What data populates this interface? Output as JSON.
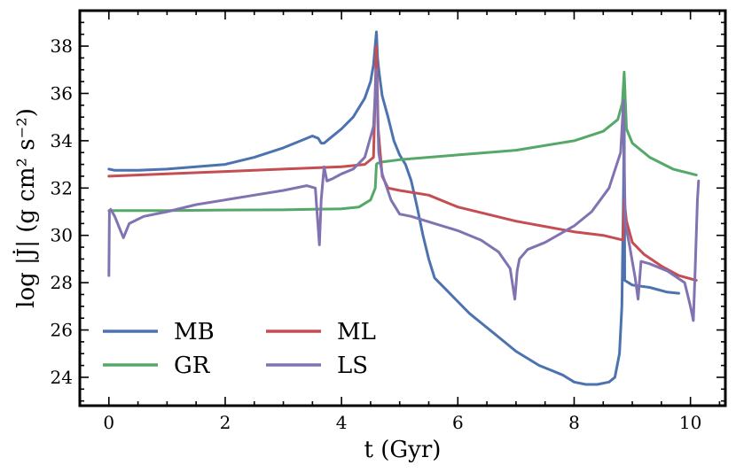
{
  "chart_data": {
    "type": "line",
    "xlabel": "t (Gyr)",
    "ylabel": "log |J̇| (g cm² s⁻²)",
    "xlim": [
      -0.5,
      10.6
    ],
    "ylim": [
      22.8,
      39.5
    ],
    "xticks": [
      0,
      2,
      4,
      6,
      8,
      10
    ],
    "yticks": [
      24,
      26,
      28,
      30,
      32,
      34,
      36,
      38
    ],
    "legend_placement": "lower-left",
    "grid": false,
    "series": [
      {
        "name": "MB",
        "color": "#4c72b0",
        "x": [
          0,
          0.1,
          0.5,
          1.0,
          1.5,
          2.0,
          2.5,
          3.0,
          3.3,
          3.5,
          3.6,
          3.65,
          3.7,
          3.8,
          4.0,
          4.2,
          4.4,
          4.5,
          4.55,
          4.6,
          4.62,
          4.65,
          4.7,
          4.8,
          4.9,
          5.0,
          5.1,
          5.2,
          5.3,
          5.4,
          5.5,
          5.6,
          5.8,
          6.0,
          6.2,
          6.4,
          6.6,
          6.8,
          7.0,
          7.2,
          7.4,
          7.6,
          7.8,
          8.0,
          8.2,
          8.4,
          8.6,
          8.7,
          8.78,
          8.82,
          8.85,
          8.86,
          8.87,
          9.0,
          9.3,
          9.6,
          9.8
        ],
        "y": [
          32.8,
          32.75,
          32.75,
          32.8,
          32.9,
          33.0,
          33.3,
          33.7,
          34.0,
          34.2,
          34.1,
          33.9,
          33.9,
          34.1,
          34.5,
          35.0,
          35.8,
          36.5,
          37.2,
          38.6,
          37.5,
          36.8,
          35.9,
          35.0,
          34.0,
          33.4,
          33.0,
          32.3,
          31.2,
          30.0,
          29.0,
          28.2,
          27.7,
          27.2,
          26.7,
          26.3,
          25.9,
          25.5,
          25.1,
          24.8,
          24.5,
          24.3,
          24.1,
          23.8,
          23.7,
          23.7,
          23.8,
          24.0,
          25.0,
          27.0,
          32.0,
          35.5,
          28.1,
          27.9,
          27.8,
          27.6,
          27.55
        ]
      },
      {
        "name": "GR",
        "color": "#55a868",
        "x": [
          0,
          0.5,
          1.0,
          2.0,
          3.0,
          3.5,
          4.0,
          4.3,
          4.5,
          4.58,
          4.6,
          4.62,
          4.7,
          5.0,
          6.0,
          7.0,
          8.0,
          8.5,
          8.75,
          8.83,
          8.86,
          8.9,
          9.0,
          9.3,
          9.7,
          10.1
        ],
        "y": [
          31.05,
          31.05,
          31.05,
          31.07,
          31.08,
          31.1,
          31.12,
          31.2,
          31.5,
          32.0,
          33.0,
          33.05,
          33.1,
          33.2,
          33.4,
          33.6,
          34.0,
          34.4,
          34.9,
          35.6,
          36.9,
          34.5,
          33.9,
          33.3,
          32.8,
          32.55
        ]
      },
      {
        "name": "ML",
        "color": "#c44e52",
        "x": [
          0,
          1.0,
          2.0,
          3.0,
          4.0,
          4.4,
          4.55,
          4.6,
          4.63,
          4.7,
          4.8,
          5.0,
          5.5,
          6.0,
          7.0,
          8.0,
          8.5,
          8.84,
          8.86,
          8.9,
          9.0,
          9.2,
          9.5,
          9.8,
          10.1
        ],
        "y": [
          32.5,
          32.6,
          32.7,
          32.8,
          32.9,
          33.0,
          33.3,
          38.0,
          34.5,
          32.5,
          32.0,
          31.9,
          31.7,
          31.2,
          30.6,
          30.15,
          30.0,
          29.8,
          31.5,
          30.6,
          29.7,
          29.2,
          28.7,
          28.3,
          28.1
        ]
      },
      {
        "name": "LS",
        "color": "#8172b2",
        "x": [
          0,
          0.01,
          0.03,
          0.1,
          0.2,
          0.25,
          0.35,
          0.6,
          1.0,
          1.5,
          2.0,
          2.5,
          3.0,
          3.4,
          3.55,
          3.62,
          3.65,
          3.7,
          3.75,
          3.85,
          4.0,
          4.2,
          4.4,
          4.55,
          4.6,
          4.64,
          4.7,
          4.85,
          5.0,
          5.2,
          5.6,
          6.0,
          6.4,
          6.7,
          6.9,
          6.98,
          7.02,
          7.06,
          7.2,
          7.5,
          8.0,
          8.3,
          8.6,
          8.8,
          8.85,
          8.86,
          8.88,
          8.95,
          9.05,
          9.1,
          9.15,
          9.3,
          9.6,
          9.9,
          10.0,
          10.05,
          10.08,
          10.12,
          10.14
        ],
        "y": [
          28.3,
          31.0,
          31.1,
          30.8,
          30.2,
          29.9,
          30.5,
          30.8,
          31.0,
          31.3,
          31.5,
          31.7,
          31.9,
          32.1,
          32.0,
          29.6,
          31.5,
          32.9,
          32.3,
          32.4,
          32.6,
          32.8,
          33.3,
          34.6,
          37.0,
          33.5,
          32.6,
          31.5,
          30.9,
          30.8,
          30.5,
          30.2,
          29.8,
          29.3,
          28.6,
          27.3,
          28.5,
          29.0,
          29.4,
          29.7,
          30.4,
          31.0,
          32.0,
          33.5,
          35.7,
          33.0,
          30.5,
          29.6,
          28.2,
          27.3,
          28.9,
          28.8,
          28.5,
          28.0,
          27.0,
          26.4,
          28.5,
          31.5,
          32.3
        ]
      }
    ]
  }
}
